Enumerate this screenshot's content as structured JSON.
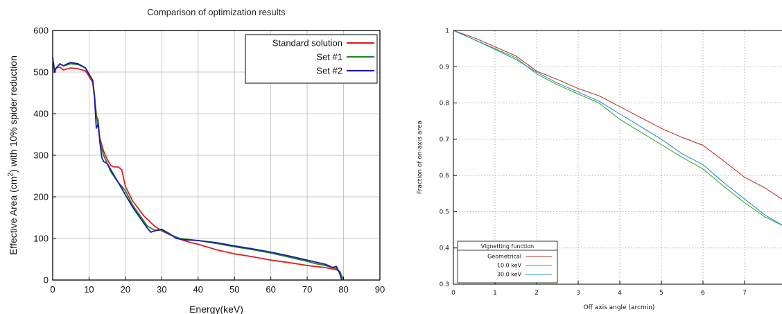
{
  "chart_data": [
    {
      "type": "line",
      "title": "Comparison of optimization results",
      "xlabel": "Energy(keV)",
      "ylabel_prefix": "Effective Area (cm",
      "ylabel_sup": "2",
      "ylabel_suffix": ") with 10% spider reduction",
      "xlim": [
        0,
        90
      ],
      "ylim": [
        0,
        600
      ],
      "xticks": [
        0,
        10,
        20,
        30,
        40,
        50,
        60,
        70,
        80,
        90
      ],
      "yticks": [
        0,
        100,
        200,
        300,
        400,
        500,
        600
      ],
      "grid": true,
      "legend_position": "top-right",
      "series": [
        {
          "name": "Standard solution",
          "color": "#e8191c",
          "points": [
            [
              0,
              535
            ],
            [
              0.5,
              505
            ],
            [
              1,
              510
            ],
            [
              2,
              512
            ],
            [
              3,
              505
            ],
            [
              4,
              508
            ],
            [
              5,
              510
            ],
            [
              7,
              508
            ],
            [
              9,
              503
            ],
            [
              10,
              490
            ],
            [
              11,
              475
            ],
            [
              11.5,
              440
            ],
            [
              12,
              400
            ],
            [
              12.5,
              370
            ],
            [
              13,
              340
            ],
            [
              14,
              310
            ],
            [
              15,
              290
            ],
            [
              16,
              275
            ],
            [
              17,
              272
            ],
            [
              18,
              272
            ],
            [
              19,
              265
            ],
            [
              20,
              225
            ],
            [
              22,
              190
            ],
            [
              25,
              155
            ],
            [
              28,
              130
            ],
            [
              30,
              118
            ],
            [
              32,
              110
            ],
            [
              35,
              98
            ],
            [
              38,
              90
            ],
            [
              40,
              86
            ],
            [
              45,
              73
            ],
            [
              50,
              63
            ],
            [
              55,
              56
            ],
            [
              60,
              48
            ],
            [
              65,
              42
            ],
            [
              70,
              35
            ],
            [
              75,
              30
            ],
            [
              78,
              25
            ],
            [
              79,
              20
            ],
            [
              80,
              0
            ]
          ]
        },
        {
          "name": "Set #1",
          "color": "#1f8a1f",
          "points": [
            [
              0,
              535
            ],
            [
              0.5,
              505
            ],
            [
              1,
              510
            ],
            [
              2,
              520
            ],
            [
              3,
              515
            ],
            [
              5,
              520
            ],
            [
              7,
              518
            ],
            [
              9,
              510
            ],
            [
              10,
              495
            ],
            [
              11,
              480
            ],
            [
              11.5,
              445
            ],
            [
              12,
              395
            ],
            [
              12.5,
              385
            ],
            [
              13,
              330
            ],
            [
              14,
              300
            ],
            [
              15,
              280
            ],
            [
              16,
              260
            ],
            [
              18,
              235
            ],
            [
              20,
              215
            ],
            [
              22,
              180
            ],
            [
              24,
              155
            ],
            [
              26,
              130
            ],
            [
              28,
              120
            ],
            [
              30,
              120
            ],
            [
              32,
              110
            ],
            [
              35,
              100
            ],
            [
              40,
              95
            ],
            [
              45,
              88
            ],
            [
              50,
              80
            ],
            [
              55,
              73
            ],
            [
              60,
              65
            ],
            [
              65,
              55
            ],
            [
              70,
              45
            ],
            [
              72,
              40
            ],
            [
              75,
              35
            ],
            [
              78,
              28
            ],
            [
              79,
              20
            ],
            [
              80,
              0
            ]
          ]
        },
        {
          "name": "Set #2",
          "color": "#1a1aaa",
          "points": [
            [
              0,
              535
            ],
            [
              0.5,
              500
            ],
            [
              1,
              510
            ],
            [
              2,
              520
            ],
            [
              3,
              515
            ],
            [
              4,
              520
            ],
            [
              5,
              523
            ],
            [
              7,
              520
            ],
            [
              9,
              510
            ],
            [
              10,
              495
            ],
            [
              11,
              480
            ],
            [
              11.5,
              440
            ],
            [
              12,
              365
            ],
            [
              12.5,
              375
            ],
            [
              13,
              330
            ],
            [
              13.5,
              295
            ],
            [
              14,
              285
            ],
            [
              15,
              280
            ],
            [
              16,
              265
            ],
            [
              18,
              235
            ],
            [
              20,
              205
            ],
            [
              22,
              175
            ],
            [
              24,
              150
            ],
            [
              26,
              125
            ],
            [
              27,
              115
            ],
            [
              28,
              118
            ],
            [
              30,
              122
            ],
            [
              32,
              112
            ],
            [
              34,
              100
            ],
            [
              36,
              97
            ],
            [
              40,
              95
            ],
            [
              45,
              90
            ],
            [
              50,
              82
            ],
            [
              55,
              75
            ],
            [
              60,
              67
            ],
            [
              65,
              58
            ],
            [
              70,
              48
            ],
            [
              75,
              38
            ],
            [
              77,
              30
            ],
            [
              78,
              33
            ],
            [
              79,
              15
            ],
            [
              79.5,
              0
            ]
          ]
        }
      ]
    },
    {
      "type": "line",
      "title": "",
      "xlabel": "Off axis angle (arcmin)",
      "ylabel": "Fraction of on-axis area",
      "xlim": [
        0,
        8
      ],
      "ylim": [
        0.3,
        1.0
      ],
      "xticks": [
        0,
        1,
        2,
        3,
        4,
        5,
        6,
        7
      ],
      "yticks": [
        0.3,
        0.4,
        0.5,
        0.6,
        0.7,
        0.8,
        0.9,
        1
      ],
      "grid": true,
      "legend_position": "bottom-left",
      "legend_title": "Vignetting function",
      "series": [
        {
          "name": "Geometrical",
          "color": "#c0392b",
          "points": [
            [
              0,
              1.0
            ],
            [
              0.5,
              0.98
            ],
            [
              1,
              0.955
            ],
            [
              1.5,
              0.93
            ],
            [
              2,
              0.888
            ],
            [
              2.5,
              0.865
            ],
            [
              3,
              0.84
            ],
            [
              3.5,
              0.82
            ],
            [
              4,
              0.79
            ],
            [
              4.5,
              0.76
            ],
            [
              5,
              0.73
            ],
            [
              5.5,
              0.705
            ],
            [
              6,
              0.683
            ],
            [
              6.5,
              0.64
            ],
            [
              7,
              0.595
            ],
            [
              7.5,
              0.565
            ],
            [
              8,
              0.527
            ]
          ]
        },
        {
          "name": "10.0 keV",
          "color": "#3fae2a",
          "points": [
            [
              0,
              1.0
            ],
            [
              0.5,
              0.975
            ],
            [
              1,
              0.95
            ],
            [
              1.5,
              0.925
            ],
            [
              2,
              0.88
            ],
            [
              2.5,
              0.85
            ],
            [
              3,
              0.825
            ],
            [
              3.5,
              0.8
            ],
            [
              4,
              0.755
            ],
            [
              4.5,
              0.72
            ],
            [
              5,
              0.685
            ],
            [
              5.5,
              0.65
            ],
            [
              6,
              0.618
            ],
            [
              6.5,
              0.57
            ],
            [
              7,
              0.525
            ],
            [
              7.5,
              0.485
            ],
            [
              8,
              0.457
            ]
          ]
        },
        {
          "name": "30.0 keV",
          "color": "#2a8fd6",
          "points": [
            [
              0,
              1.0
            ],
            [
              0.5,
              0.975
            ],
            [
              1,
              0.948
            ],
            [
              1.5,
              0.92
            ],
            [
              2,
              0.885
            ],
            [
              2.5,
              0.855
            ],
            [
              3,
              0.83
            ],
            [
              3.5,
              0.805
            ],
            [
              4,
              0.77
            ],
            [
              4.5,
              0.735
            ],
            [
              5,
              0.7
            ],
            [
              5.5,
              0.66
            ],
            [
              6,
              0.63
            ],
            [
              6.5,
              0.58
            ],
            [
              7,
              0.535
            ],
            [
              7.5,
              0.49
            ],
            [
              8,
              0.457
            ]
          ]
        }
      ]
    }
  ]
}
